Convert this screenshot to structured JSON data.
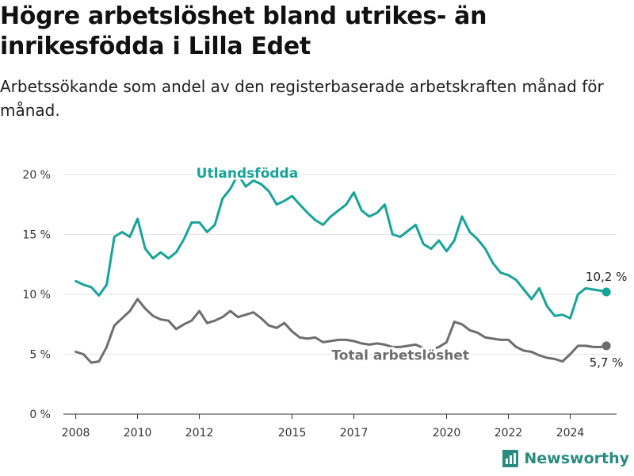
{
  "title": "Högre arbetslöshet bland utrikes- än inrikesfödda i Lilla Edet",
  "subtitle": "Arbetssökande som andel av den registerbaserade arbetskraften månad för månad.",
  "brand": "Newsworthy",
  "colors": {
    "foreign": "#17a398",
    "total": "#6d6d6d",
    "grid": "#e2e2e2",
    "axis": "#333333",
    "brand": "#2a8c80"
  },
  "chart_data": {
    "type": "line",
    "x_unit": "year (decimal)",
    "y_unit": "percent",
    "xlim": [
      2007.6,
      2025.5
    ],
    "ylim": [
      0,
      20
    ],
    "y_ticks": [
      0,
      5,
      10,
      15,
      20
    ],
    "y_tick_labels": [
      "0 %",
      "5 %",
      "10 %",
      "15 %",
      "20 %"
    ],
    "x_ticks": [
      2008,
      2010,
      2012,
      2015,
      2017,
      2020,
      2022,
      2024
    ],
    "x_tick_labels": [
      "2008",
      "2010",
      "2012",
      "2015",
      "2017",
      "2020",
      "2022",
      "2024"
    ],
    "grid": true,
    "series": [
      {
        "name": "Utlandsfödda",
        "color_key": "foreign",
        "end_label": "10,2 %",
        "x": [
          2008.0,
          2008.25,
          2008.5,
          2008.75,
          2009.0,
          2009.25,
          2009.5,
          2009.75,
          2010.0,
          2010.25,
          2010.5,
          2010.75,
          2011.0,
          2011.25,
          2011.5,
          2011.75,
          2012.0,
          2012.25,
          2012.5,
          2012.75,
          2013.0,
          2013.25,
          2013.5,
          2013.75,
          2014.0,
          2014.25,
          2014.5,
          2014.75,
          2015.0,
          2015.25,
          2015.5,
          2015.75,
          2016.0,
          2016.25,
          2016.5,
          2016.75,
          2017.0,
          2017.25,
          2017.5,
          2017.75,
          2018.0,
          2018.25,
          2018.5,
          2018.75,
          2019.0,
          2019.25,
          2019.5,
          2019.75,
          2020.0,
          2020.25,
          2020.5,
          2020.75,
          2021.0,
          2021.25,
          2021.5,
          2021.75,
          2022.0,
          2022.25,
          2022.5,
          2022.75,
          2023.0,
          2023.25,
          2023.5,
          2023.75,
          2024.0,
          2024.25,
          2024.5,
          2024.75,
          2025.0,
          2025.17
        ],
        "values": [
          11.1,
          10.8,
          10.6,
          9.9,
          10.8,
          14.8,
          15.2,
          14.8,
          16.3,
          13.8,
          13.0,
          13.5,
          13.0,
          13.5,
          14.6,
          16.0,
          16.0,
          15.2,
          15.8,
          18.0,
          18.8,
          20.0,
          19.0,
          19.5,
          19.2,
          18.6,
          17.5,
          17.8,
          18.2,
          17.5,
          16.8,
          16.2,
          15.8,
          16.5,
          17.0,
          17.5,
          18.5,
          17.0,
          16.5,
          16.8,
          17.5,
          15.0,
          14.8,
          15.3,
          15.8,
          14.2,
          13.8,
          14.5,
          13.6,
          14.5,
          16.5,
          15.2,
          14.6,
          13.8,
          12.6,
          11.8,
          11.6,
          11.2,
          10.4,
          9.6,
          10.5,
          9.0,
          8.2,
          8.3,
          8.0,
          10.0,
          10.5,
          10.4,
          10.3,
          10.2
        ]
      },
      {
        "name": "Total arbetslöshet",
        "color_key": "total",
        "end_label": "5,7 %",
        "x": [
          2008.0,
          2008.25,
          2008.5,
          2008.75,
          2009.0,
          2009.25,
          2009.5,
          2009.75,
          2010.0,
          2010.25,
          2010.5,
          2010.75,
          2011.0,
          2011.25,
          2011.5,
          2011.75,
          2012.0,
          2012.25,
          2012.5,
          2012.75,
          2013.0,
          2013.25,
          2013.5,
          2013.75,
          2014.0,
          2014.25,
          2014.5,
          2014.75,
          2015.0,
          2015.25,
          2015.5,
          2015.75,
          2016.0,
          2016.25,
          2016.5,
          2016.75,
          2017.0,
          2017.25,
          2017.5,
          2017.75,
          2018.0,
          2018.25,
          2018.5,
          2018.75,
          2019.0,
          2019.25,
          2019.5,
          2019.75,
          2020.0,
          2020.25,
          2020.5,
          2020.75,
          2021.0,
          2021.25,
          2021.5,
          2021.75,
          2022.0,
          2022.25,
          2022.5,
          2022.75,
          2023.0,
          2023.25,
          2023.5,
          2023.75,
          2024.0,
          2024.25,
          2024.5,
          2024.75,
          2025.0,
          2025.17
        ],
        "values": [
          5.2,
          5.0,
          4.3,
          4.4,
          5.6,
          7.4,
          8.0,
          8.6,
          9.6,
          8.8,
          8.2,
          7.9,
          7.8,
          7.1,
          7.5,
          7.8,
          8.6,
          7.6,
          7.8,
          8.1,
          8.6,
          8.1,
          8.3,
          8.5,
          8.0,
          7.4,
          7.2,
          7.6,
          6.9,
          6.4,
          6.3,
          6.4,
          6.0,
          6.1,
          6.2,
          6.2,
          6.1,
          5.9,
          5.8,
          5.9,
          5.8,
          5.6,
          5.6,
          5.7,
          5.8,
          5.5,
          5.4,
          5.6,
          6.0,
          7.7,
          7.5,
          7.0,
          6.8,
          6.4,
          6.3,
          6.2,
          6.2,
          5.6,
          5.3,
          5.2,
          4.9,
          4.7,
          4.6,
          4.4,
          5.0,
          5.7,
          5.7,
          5.6,
          5.6,
          5.7
        ]
      }
    ]
  }
}
